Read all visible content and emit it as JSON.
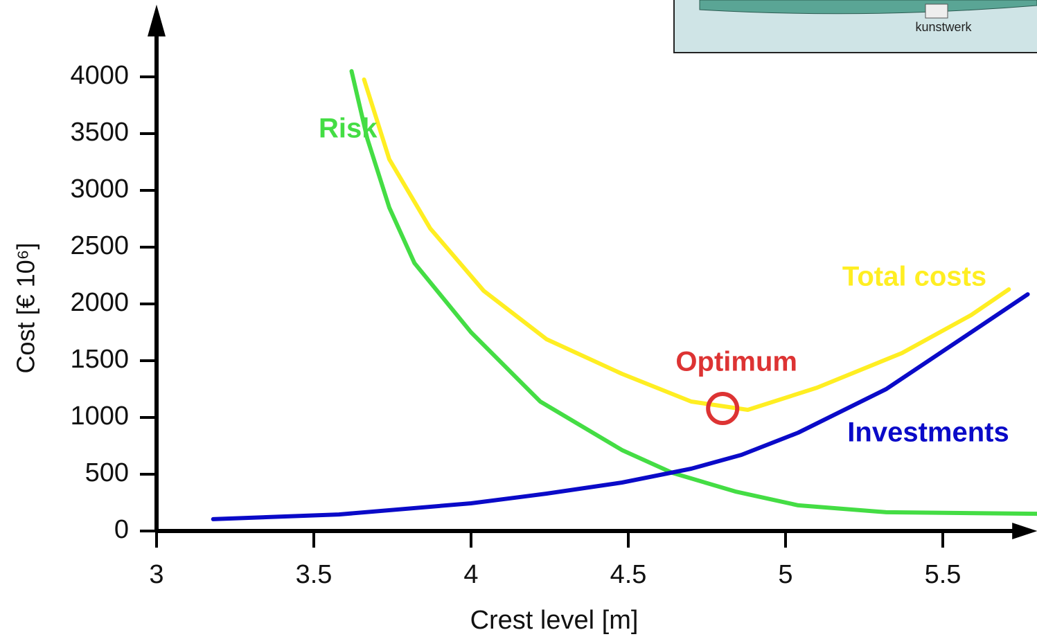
{
  "chart_data": {
    "type": "line",
    "x_label": "Crest level [m]",
    "y_label": "Cost [€ 10⁶]",
    "xlim": [
      3,
      5.8
    ],
    "ylim": [
      0,
      4600
    ],
    "xticks": [
      3,
      3.5,
      4,
      4.5,
      5,
      5.5
    ],
    "yticks": [
      0,
      500,
      1000,
      1500,
      2000,
      2500,
      3000,
      3500,
      4000
    ],
    "series": [
      {
        "name": "Risk",
        "color": "#44dd44",
        "x": [
          3.62,
          3.67,
          3.74,
          3.82,
          4.0,
          4.22,
          4.48,
          4.64,
          4.84,
          5.04,
          5.32,
          5.8
        ],
        "values": [
          4050,
          3457,
          2848,
          2360,
          1750,
          1140,
          713,
          512,
          348,
          226,
          165,
          152
        ]
      },
      {
        "name": "Investments",
        "color": "#0a0ac8",
        "x": [
          3.18,
          3.58,
          4.0,
          4.24,
          4.48,
          4.7,
          4.86,
          5.04,
          5.32,
          5.59,
          5.77
        ],
        "values": [
          104,
          146,
          244,
          329,
          427,
          549,
          671,
          866,
          1250,
          1750,
          2085
        ]
      },
      {
        "name": "Total costs",
        "color": "#ffee22",
        "x": [
          3.66,
          3.74,
          3.87,
          4.04,
          4.24,
          4.48,
          4.7,
          4.88,
          5.1,
          5.37,
          5.59,
          5.71
        ],
        "values": [
          3976,
          3274,
          2665,
          2116,
          1689,
          1384,
          1140,
          1067,
          1262,
          1567,
          1902,
          2128
        ]
      }
    ],
    "annotations": [
      {
        "text": "Optimum",
        "color": "#dd3333",
        "x": 4.8,
        "y": 1079
      }
    ],
    "inset_label": "kunstwerk"
  }
}
